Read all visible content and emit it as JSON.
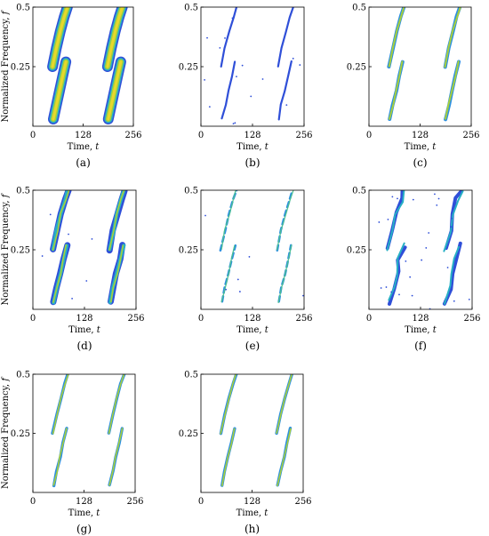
{
  "figure": {
    "colors": {
      "contour": [
        "#3b2a98",
        "#2f4fd8",
        "#2c8fe0",
        "#27b0c4",
        "#4cc18e",
        "#a9cf3a",
        "#e7d82c"
      ]
    },
    "panels": [
      {
        "label": "(a)",
        "ylabel": "Normalized Frequency,",
        "ylabel_var": "f",
        "xlabel": "Time,",
        "xlabel_var": "t",
        "xticks": [
          "0",
          "128",
          "256"
        ],
        "yticks": [
          "0.25",
          "0.5"
        ],
        "style": "blobs"
      },
      {
        "label": "(b)",
        "ylabel": "",
        "ylabel_var": "",
        "xlabel": "Time,",
        "xlabel_var": "t",
        "xticks": [
          "0",
          "128",
          "256"
        ],
        "yticks": [
          "0.25",
          "0.5"
        ],
        "style": "thin"
      },
      {
        "label": "(c)",
        "ylabel": "",
        "ylabel_var": "",
        "xlabel": "Time,",
        "xlabel_var": "t",
        "xticks": [
          "0",
          "128",
          "256"
        ],
        "yticks": [
          "0.25",
          "0.5"
        ],
        "style": "bright"
      },
      {
        "label": "(d)",
        "ylabel": "Normalized Frequency,",
        "ylabel_var": "f",
        "xlabel": "Time,",
        "xlabel_var": "t",
        "xticks": [
          "0",
          "128",
          "256"
        ],
        "yticks": [
          "0.25",
          "0.5"
        ],
        "style": "thick"
      },
      {
        "label": "(e)",
        "ylabel": "",
        "ylabel_var": "",
        "xlabel": "Time,",
        "xlabel_var": "t",
        "xticks": [
          "0",
          "128",
          "256"
        ],
        "yticks": [
          "0.25",
          "0.5"
        ],
        "style": "sparse"
      },
      {
        "label": "(f)",
        "ylabel": "",
        "ylabel_var": "",
        "xlabel": "Time,",
        "xlabel_var": "t",
        "xticks": [
          "0",
          "128",
          "256"
        ],
        "yticks": [
          "0.25",
          "0.5"
        ],
        "style": "noisy"
      },
      {
        "label": "(g)",
        "ylabel": "Normalized Frequency,",
        "ylabel_var": "f",
        "xlabel": "Time,",
        "xlabel_var": "t",
        "xticks": [
          "0",
          "128",
          "256"
        ],
        "yticks": [
          "0.25",
          "0.5"
        ],
        "style": "clean"
      },
      {
        "label": "(h)",
        "ylabel": "",
        "ylabel_var": "",
        "xlabel": "Time,",
        "xlabel_var": "t",
        "xticks": [
          "0",
          "128",
          "256"
        ],
        "yticks": [
          "0.25",
          "0.5"
        ],
        "style": "clean"
      }
    ]
  },
  "chart_data": {
    "type": "scatter",
    "description_free": true,
    "xlim": [
      0,
      256
    ],
    "ylim": [
      0,
      0.5
    ],
    "series": [
      {
        "x": [
          50,
          60,
          70,
          80,
          88
        ],
        "y": [
          0.25,
          0.33,
          0.4,
          0.46,
          0.5
        ]
      },
      {
        "x": [
          190,
          200,
          210,
          220,
          228
        ],
        "y": [
          0.25,
          0.33,
          0.4,
          0.46,
          0.5
        ]
      },
      {
        "x": [
          52,
          60,
          68,
          76,
          84
        ],
        "y": [
          0.03,
          0.09,
          0.15,
          0.21,
          0.27
        ]
      },
      {
        "x": [
          192,
          200,
          208,
          216,
          224
        ],
        "y": [
          0.03,
          0.09,
          0.15,
          0.21,
          0.27
        ]
      }
    ]
  }
}
